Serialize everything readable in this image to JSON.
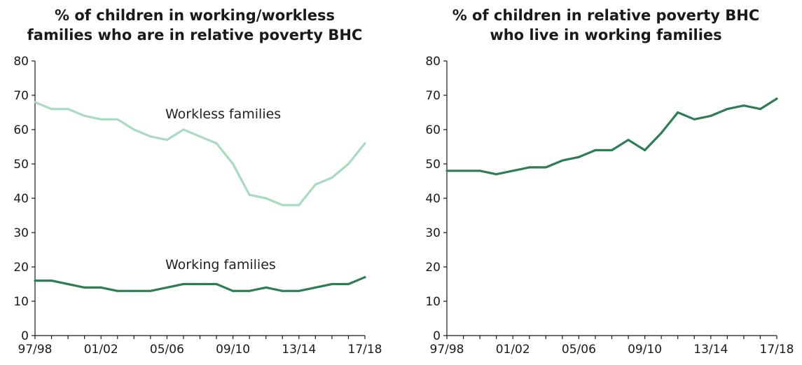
{
  "chart_data": [
    {
      "type": "line",
      "title_lines": [
        "% of children in working/workless",
        "families who are in relative poverty BHC"
      ],
      "xlabel": "",
      "ylabel": "",
      "ylim": [
        0,
        80
      ],
      "yticks": [
        "0",
        "10",
        "20",
        "30",
        "40",
        "50",
        "60",
        "70",
        "80"
      ],
      "x": [
        "97/98",
        "98/99",
        "99/00",
        "00/01",
        "01/02",
        "02/03",
        "03/04",
        "04/05",
        "05/06",
        "06/07",
        "07/08",
        "08/09",
        "09/10",
        "10/11",
        "11/12",
        "12/13",
        "13/14",
        "14/15",
        "15/16",
        "16/17",
        "17/18"
      ],
      "xticks_shown": [
        "97/98",
        "01/02",
        "05/06",
        "09/10",
        "13/14",
        "17/18"
      ],
      "grid": false,
      "series": [
        {
          "name": "Workless families",
          "color": "#a8dcc0",
          "values": [
            68,
            66,
            66,
            64,
            63,
            63,
            60,
            58,
            57,
            60,
            58,
            56,
            50,
            41,
            40,
            38,
            38,
            44,
            46,
            50,
            56
          ]
        },
        {
          "name": "Working families",
          "color": "#2e7d55",
          "values": [
            16,
            16,
            15,
            14,
            14,
            13,
            13,
            13,
            14,
            15,
            15,
            15,
            13,
            13,
            14,
            13,
            13,
            14,
            15,
            15,
            17
          ]
        }
      ]
    },
    {
      "type": "line",
      "title_lines": [
        "% of children in relative poverty BHC",
        "who live in working families"
      ],
      "xlabel": "",
      "ylabel": "",
      "ylim": [
        0,
        80
      ],
      "yticks": [
        "0",
        "10",
        "20",
        "30",
        "40",
        "50",
        "60",
        "70",
        "80"
      ],
      "x": [
        "97/98",
        "98/99",
        "99/00",
        "00/01",
        "01/02",
        "02/03",
        "03/04",
        "04/05",
        "05/06",
        "06/07",
        "07/08",
        "08/09",
        "09/10",
        "10/11",
        "11/12",
        "12/13",
        "13/14",
        "14/15",
        "15/16",
        "16/17",
        "17/18"
      ],
      "xticks_shown": [
        "97/98",
        "01/02",
        "05/06",
        "09/10",
        "13/14",
        "17/18"
      ],
      "grid": false,
      "series": [
        {
          "color": "#2e7d55",
          "values": [
            48,
            48,
            48,
            47,
            48,
            49,
            49,
            51,
            52,
            54,
            54,
            57,
            54,
            59,
            65,
            63,
            64,
            66,
            67,
            66,
            69
          ]
        }
      ]
    }
  ]
}
